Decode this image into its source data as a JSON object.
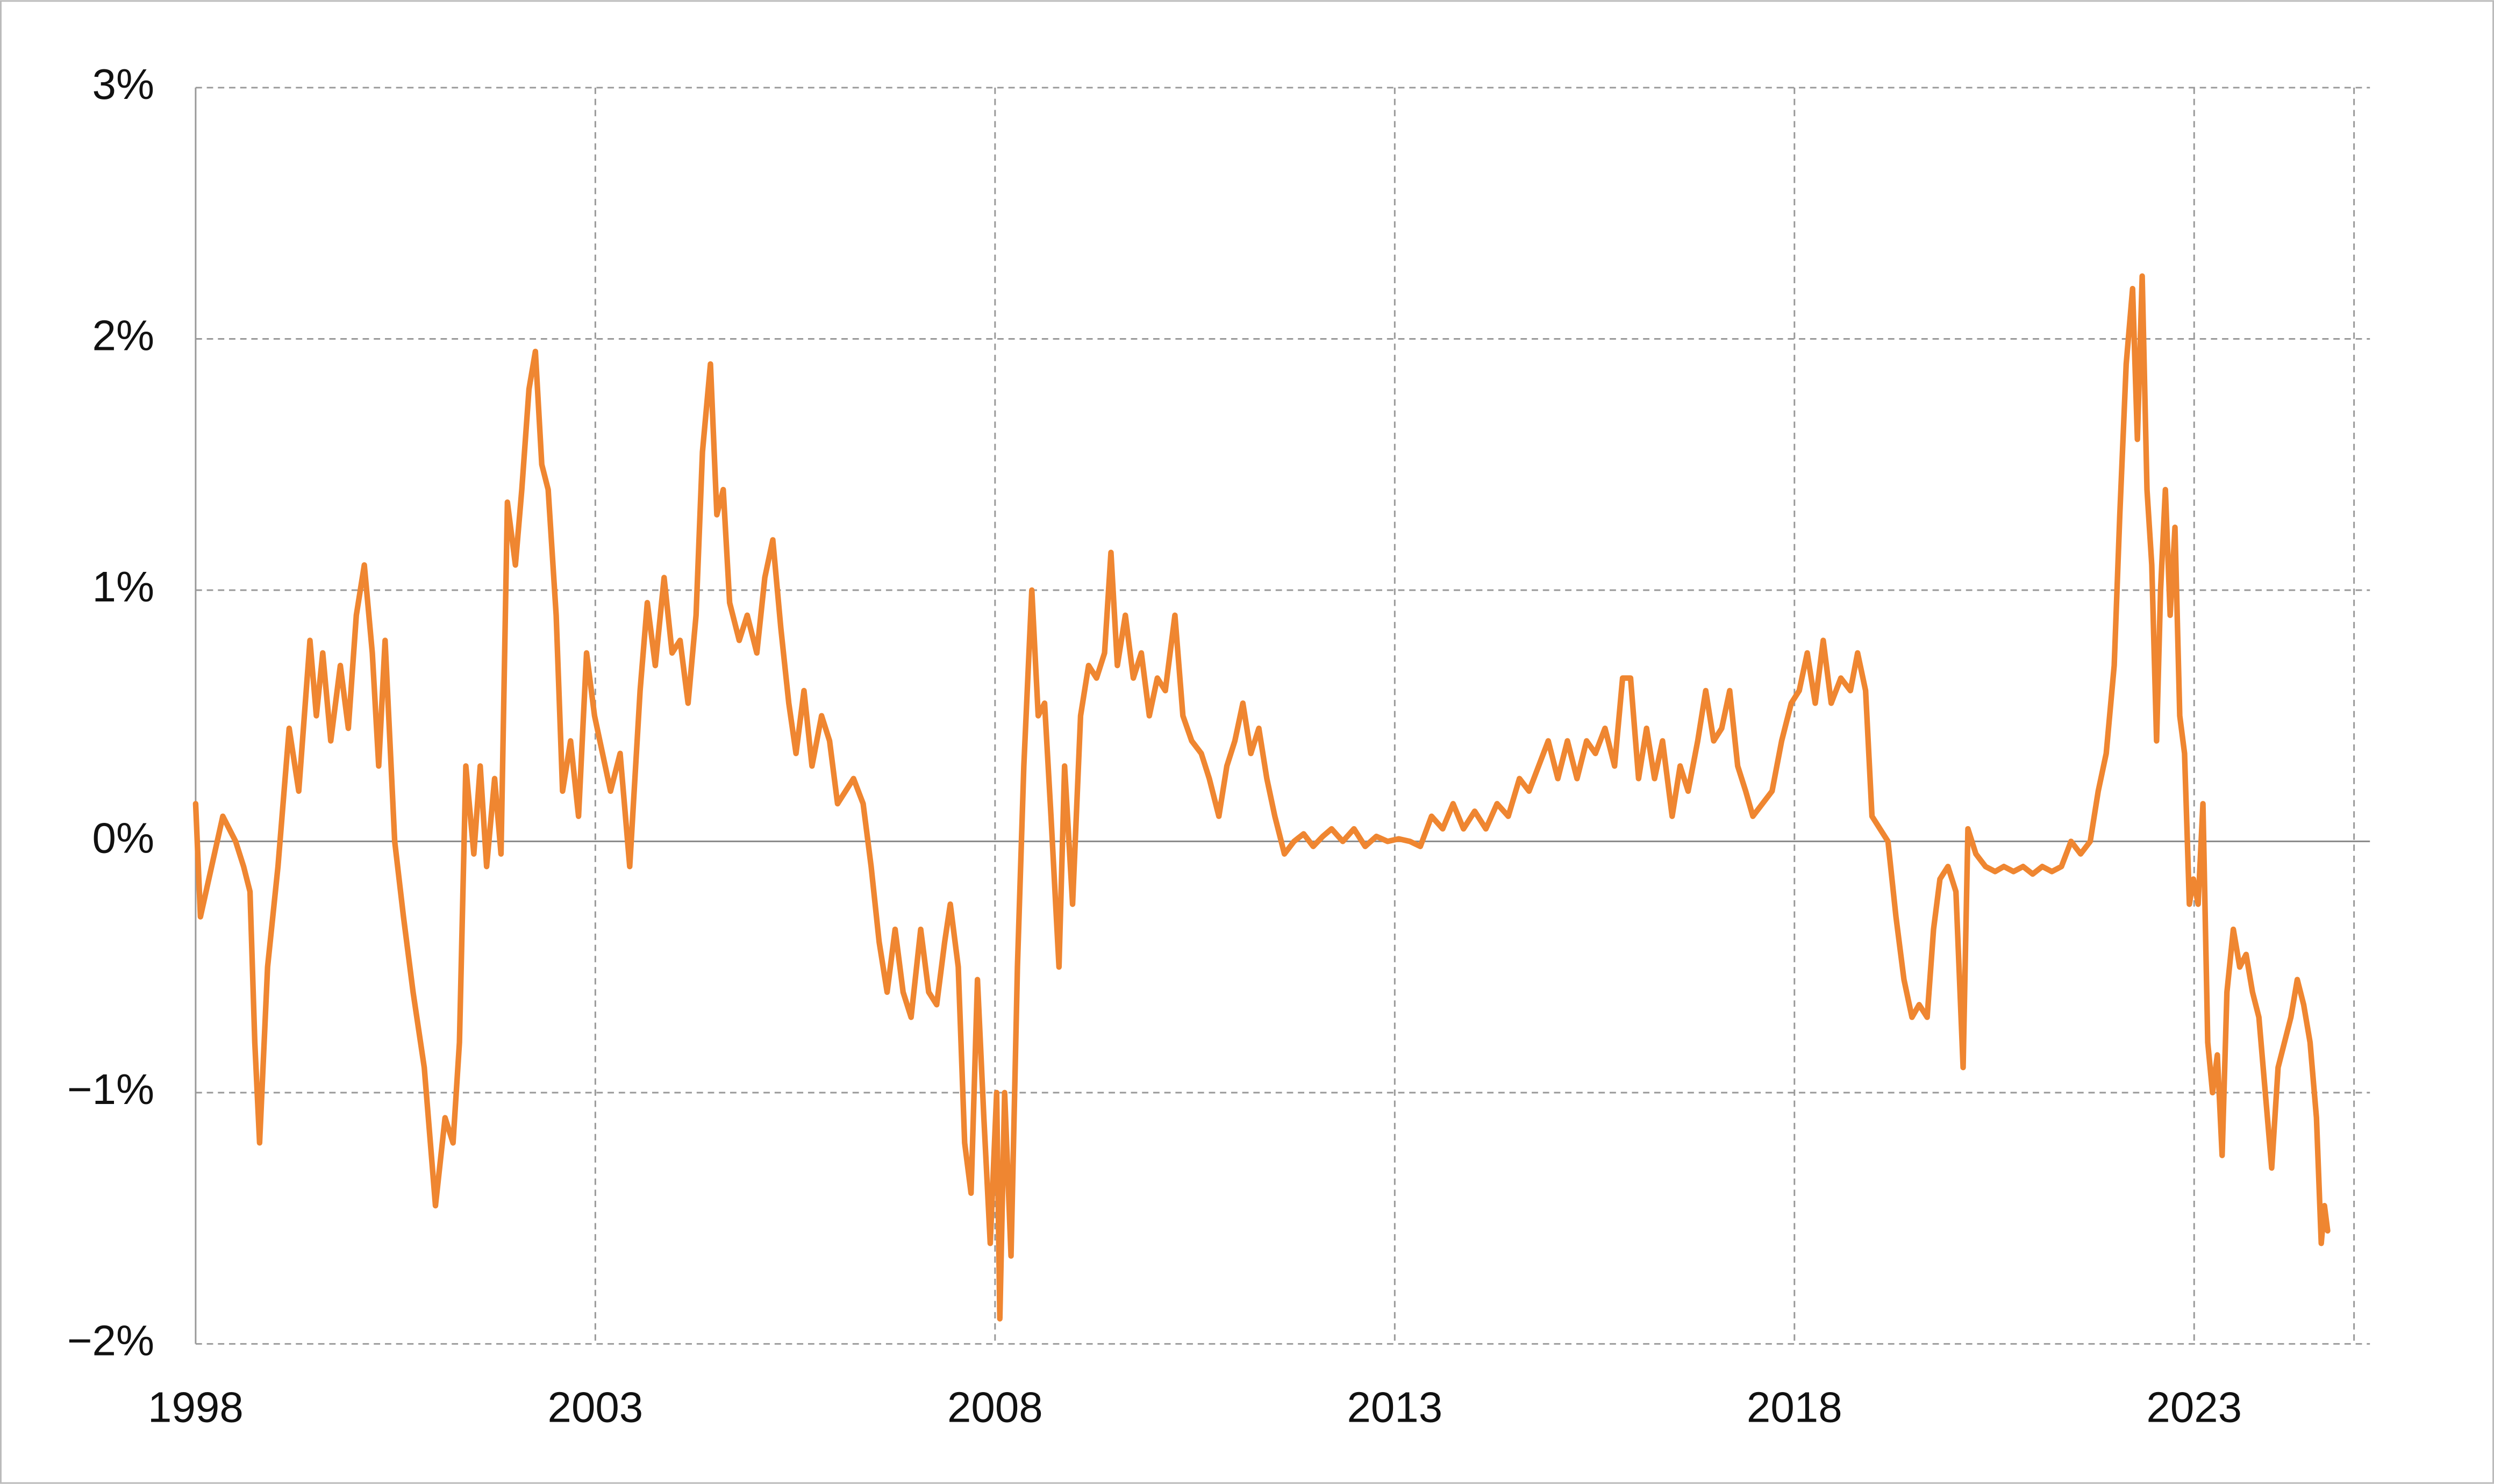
{
  "chart_data": {
    "type": "line",
    "x": [
      1998.0,
      1998.06,
      1998.2,
      1998.34,
      1998.5,
      1998.6,
      1998.68,
      1998.74,
      1998.8,
      1998.9,
      1999.03,
      1999.17,
      1999.29,
      1999.43,
      1999.51,
      1999.59,
      1999.69,
      1999.81,
      1999.91,
      2000.01,
      2000.11,
      2000.21,
      2000.29,
      2000.37,
      2000.49,
      2000.6,
      2000.72,
      2000.86,
      2001.0,
      2001.12,
      2001.22,
      2001.3,
      2001.38,
      2001.48,
      2001.56,
      2001.64,
      2001.74,
      2001.82,
      2001.9,
      2002.0,
      2002.08,
      2002.17,
      2002.25,
      2002.33,
      2002.41,
      2002.51,
      2002.59,
      2002.69,
      2002.79,
      2002.89,
      2002.99,
      2003.09,
      2003.19,
      2003.31,
      2003.43,
      2003.56,
      2003.65,
      2003.75,
      2003.86,
      2003.96,
      2004.06,
      2004.16,
      2004.26,
      2004.34,
      2004.44,
      2004.52,
      2004.6,
      2004.68,
      2004.8,
      2004.9,
      2005.02,
      2005.12,
      2005.22,
      2005.32,
      2005.42,
      2005.51,
      2005.61,
      2005.71,
      2005.83,
      2005.93,
      2006.03,
      2006.13,
      2006.23,
      2006.35,
      2006.45,
      2006.55,
      2006.65,
      2006.75,
      2006.85,
      2006.95,
      2007.07,
      2007.17,
      2007.27,
      2007.37,
      2007.44,
      2007.54,
      2007.62,
      2007.7,
      2007.78,
      2007.86,
      2007.94,
      2008.02,
      2008.06,
      2008.12,
      2008.2,
      2008.28,
      2008.36,
      2008.46,
      2008.54,
      2008.62,
      2008.7,
      2008.8,
      2008.87,
      2008.97,
      2009.07,
      2009.17,
      2009.27,
      2009.37,
      2009.45,
      2009.53,
      2009.63,
      2009.73,
      2009.83,
      2009.93,
      2010.03,
      2010.13,
      2010.25,
      2010.35,
      2010.46,
      2010.58,
      2010.68,
      2010.8,
      2010.9,
      2011.0,
      2011.1,
      2011.2,
      2011.3,
      2011.4,
      2011.5,
      2011.62,
      2011.74,
      2011.86,
      2011.98,
      2012.1,
      2012.21,
      2012.35,
      2012.49,
      2012.63,
      2012.77,
      2012.91,
      2013.05,
      2013.19,
      2013.32,
      2013.46,
      2013.6,
      2013.73,
      2013.86,
      2014.0,
      2014.14,
      2014.28,
      2014.42,
      2014.56,
      2014.68,
      2014.8,
      2014.92,
      2015.04,
      2015.16,
      2015.28,
      2015.4,
      2015.51,
      2015.63,
      2015.75,
      2015.85,
      2015.95,
      2016.05,
      2016.15,
      2016.25,
      2016.35,
      2016.47,
      2016.57,
      2016.67,
      2016.79,
      2016.89,
      2016.99,
      2017.09,
      2017.19,
      2017.29,
      2017.39,
      2017.48,
      2017.6,
      2017.72,
      2017.84,
      2017.96,
      2018.06,
      2018.16,
      2018.26,
      2018.36,
      2018.46,
      2018.58,
      2018.7,
      2018.79,
      2018.89,
      2018.97,
      2019.07,
      2019.17,
      2019.27,
      2019.37,
      2019.47,
      2019.56,
      2019.66,
      2019.74,
      2019.82,
      2019.92,
      2020.02,
      2020.11,
      2020.17,
      2020.27,
      2020.39,
      2020.51,
      2020.62,
      2020.74,
      2020.86,
      2020.98,
      2021.1,
      2021.22,
      2021.34,
      2021.46,
      2021.58,
      2021.7,
      2021.8,
      2021.9,
      2022.0,
      2022.07,
      2022.15,
      2022.23,
      2022.29,
      2022.35,
      2022.41,
      2022.47,
      2022.53,
      2022.58,
      2022.64,
      2022.7,
      2022.76,
      2022.82,
      2022.88,
      2022.94,
      2022.99,
      2023.05,
      2023.11,
      2023.17,
      2023.23,
      2023.29,
      2023.35,
      2023.41,
      2023.49,
      2023.57,
      2023.65,
      2023.73,
      2023.81,
      2023.89,
      2023.97,
      2024.05,
      2024.13,
      2024.21,
      2024.29,
      2024.37,
      2024.45,
      2024.53,
      2024.59,
      2024.63,
      2024.67
    ],
    "series": [
      {
        "color": "#ef8631",
        "values": [
          0.15,
          -0.3,
          -0.1,
          0.1,
          0.0,
          -0.1,
          -0.2,
          -0.8,
          -1.2,
          -0.5,
          -0.1,
          0.45,
          0.2,
          0.8,
          0.5,
          0.75,
          0.4,
          0.7,
          0.45,
          0.9,
          1.1,
          0.75,
          0.3,
          0.8,
          0.0,
          -0.3,
          -0.6,
          -0.9,
          -1.45,
          -1.1,
          -1.2,
          -0.8,
          0.3,
          -0.05,
          0.3,
          -0.1,
          0.25,
          -0.05,
          1.35,
          1.1,
          1.4,
          1.8,
          1.95,
          1.5,
          1.4,
          0.9,
          0.2,
          0.4,
          0.1,
          0.75,
          0.5,
          0.35,
          0.2,
          0.35,
          -0.1,
          0.6,
          0.95,
          0.7,
          1.05,
          0.75,
          0.8,
          0.55,
          0.9,
          1.55,
          1.9,
          1.3,
          1.4,
          0.95,
          0.8,
          0.9,
          0.75,
          1.05,
          1.2,
          0.85,
          0.55,
          0.35,
          0.6,
          0.3,
          0.5,
          0.4,
          0.15,
          0.2,
          0.25,
          0.15,
          -0.1,
          -0.4,
          -0.6,
          -0.35,
          -0.6,
          -0.7,
          -0.35,
          -0.6,
          -0.65,
          -0.4,
          -0.25,
          -0.5,
          -1.2,
          -1.4,
          -0.55,
          -1.1,
          -1.6,
          -1.0,
          -1.9,
          -1.0,
          -1.65,
          -0.5,
          0.3,
          1.0,
          0.5,
          0.55,
          0.1,
          -0.5,
          0.3,
          -0.25,
          0.5,
          0.7,
          0.65,
          0.75,
          1.15,
          0.7,
          0.9,
          0.65,
          0.75,
          0.5,
          0.65,
          0.6,
          0.9,
          0.5,
          0.4,
          0.35,
          0.25,
          0.1,
          0.3,
          0.4,
          0.55,
          0.35,
          0.45,
          0.25,
          0.1,
          -0.05,
          0.0,
          0.03,
          -0.02,
          0.02,
          0.05,
          0.0,
          0.05,
          -0.02,
          0.02,
          0.0,
          0.01,
          0.0,
          -0.02,
          0.1,
          0.05,
          0.15,
          0.05,
          0.12,
          0.05,
          0.15,
          0.1,
          0.25,
          0.2,
          0.3,
          0.4,
          0.25,
          0.4,
          0.25,
          0.4,
          0.35,
          0.45,
          0.3,
          0.65,
          0.65,
          0.25,
          0.45,
          0.25,
          0.4,
          0.1,
          0.3,
          0.2,
          0.4,
          0.6,
          0.4,
          0.45,
          0.6,
          0.3,
          0.2,
          0.1,
          0.15,
          0.2,
          0.4,
          0.55,
          0.6,
          0.75,
          0.55,
          0.8,
          0.55,
          0.65,
          0.6,
          0.75,
          0.6,
          0.1,
          0.05,
          0.0,
          -0.3,
          -0.55,
          -0.7,
          -0.65,
          -0.7,
          -0.35,
          -0.15,
          -0.1,
          -0.2,
          -0.9,
          0.05,
          -0.05,
          -0.1,
          -0.12,
          -0.1,
          -0.12,
          -0.1,
          -0.13,
          -0.1,
          -0.12,
          -0.1,
          0.0,
          -0.05,
          0.0,
          0.2,
          0.35,
          0.7,
          1.3,
          1.9,
          2.2,
          1.6,
          2.25,
          1.4,
          1.1,
          0.4,
          1.0,
          1.4,
          0.9,
          1.25,
          0.5,
          0.35,
          -0.25,
          -0.15,
          -0.25,
          0.15,
          -0.8,
          -1.0,
          -0.85,
          -1.25,
          -0.6,
          -0.35,
          -0.5,
          -0.45,
          -0.6,
          -0.7,
          -1.0,
          -1.3,
          -0.9,
          -0.8,
          -0.7,
          -0.55,
          -0.65,
          -0.8,
          -1.1,
          -1.6,
          -1.45,
          -1.55
        ]
      }
    ],
    "xlim": [
      1998,
      2025
    ],
    "xticks": [
      1998,
      2003,
      2008,
      2013,
      2018,
      2023
    ],
    "ylim": [
      -2,
      3
    ],
    "yticks": [
      {
        "value": -2,
        "label": "−2%"
      },
      {
        "value": -1,
        "label": "−1%"
      },
      {
        "value": 0,
        "label": "0%"
      },
      {
        "value": 1,
        "label": "1%"
      },
      {
        "value": 2,
        "label": "2%"
      },
      {
        "value": 3,
        "label": "3%"
      }
    ],
    "grid": true,
    "zero_line": true
  }
}
